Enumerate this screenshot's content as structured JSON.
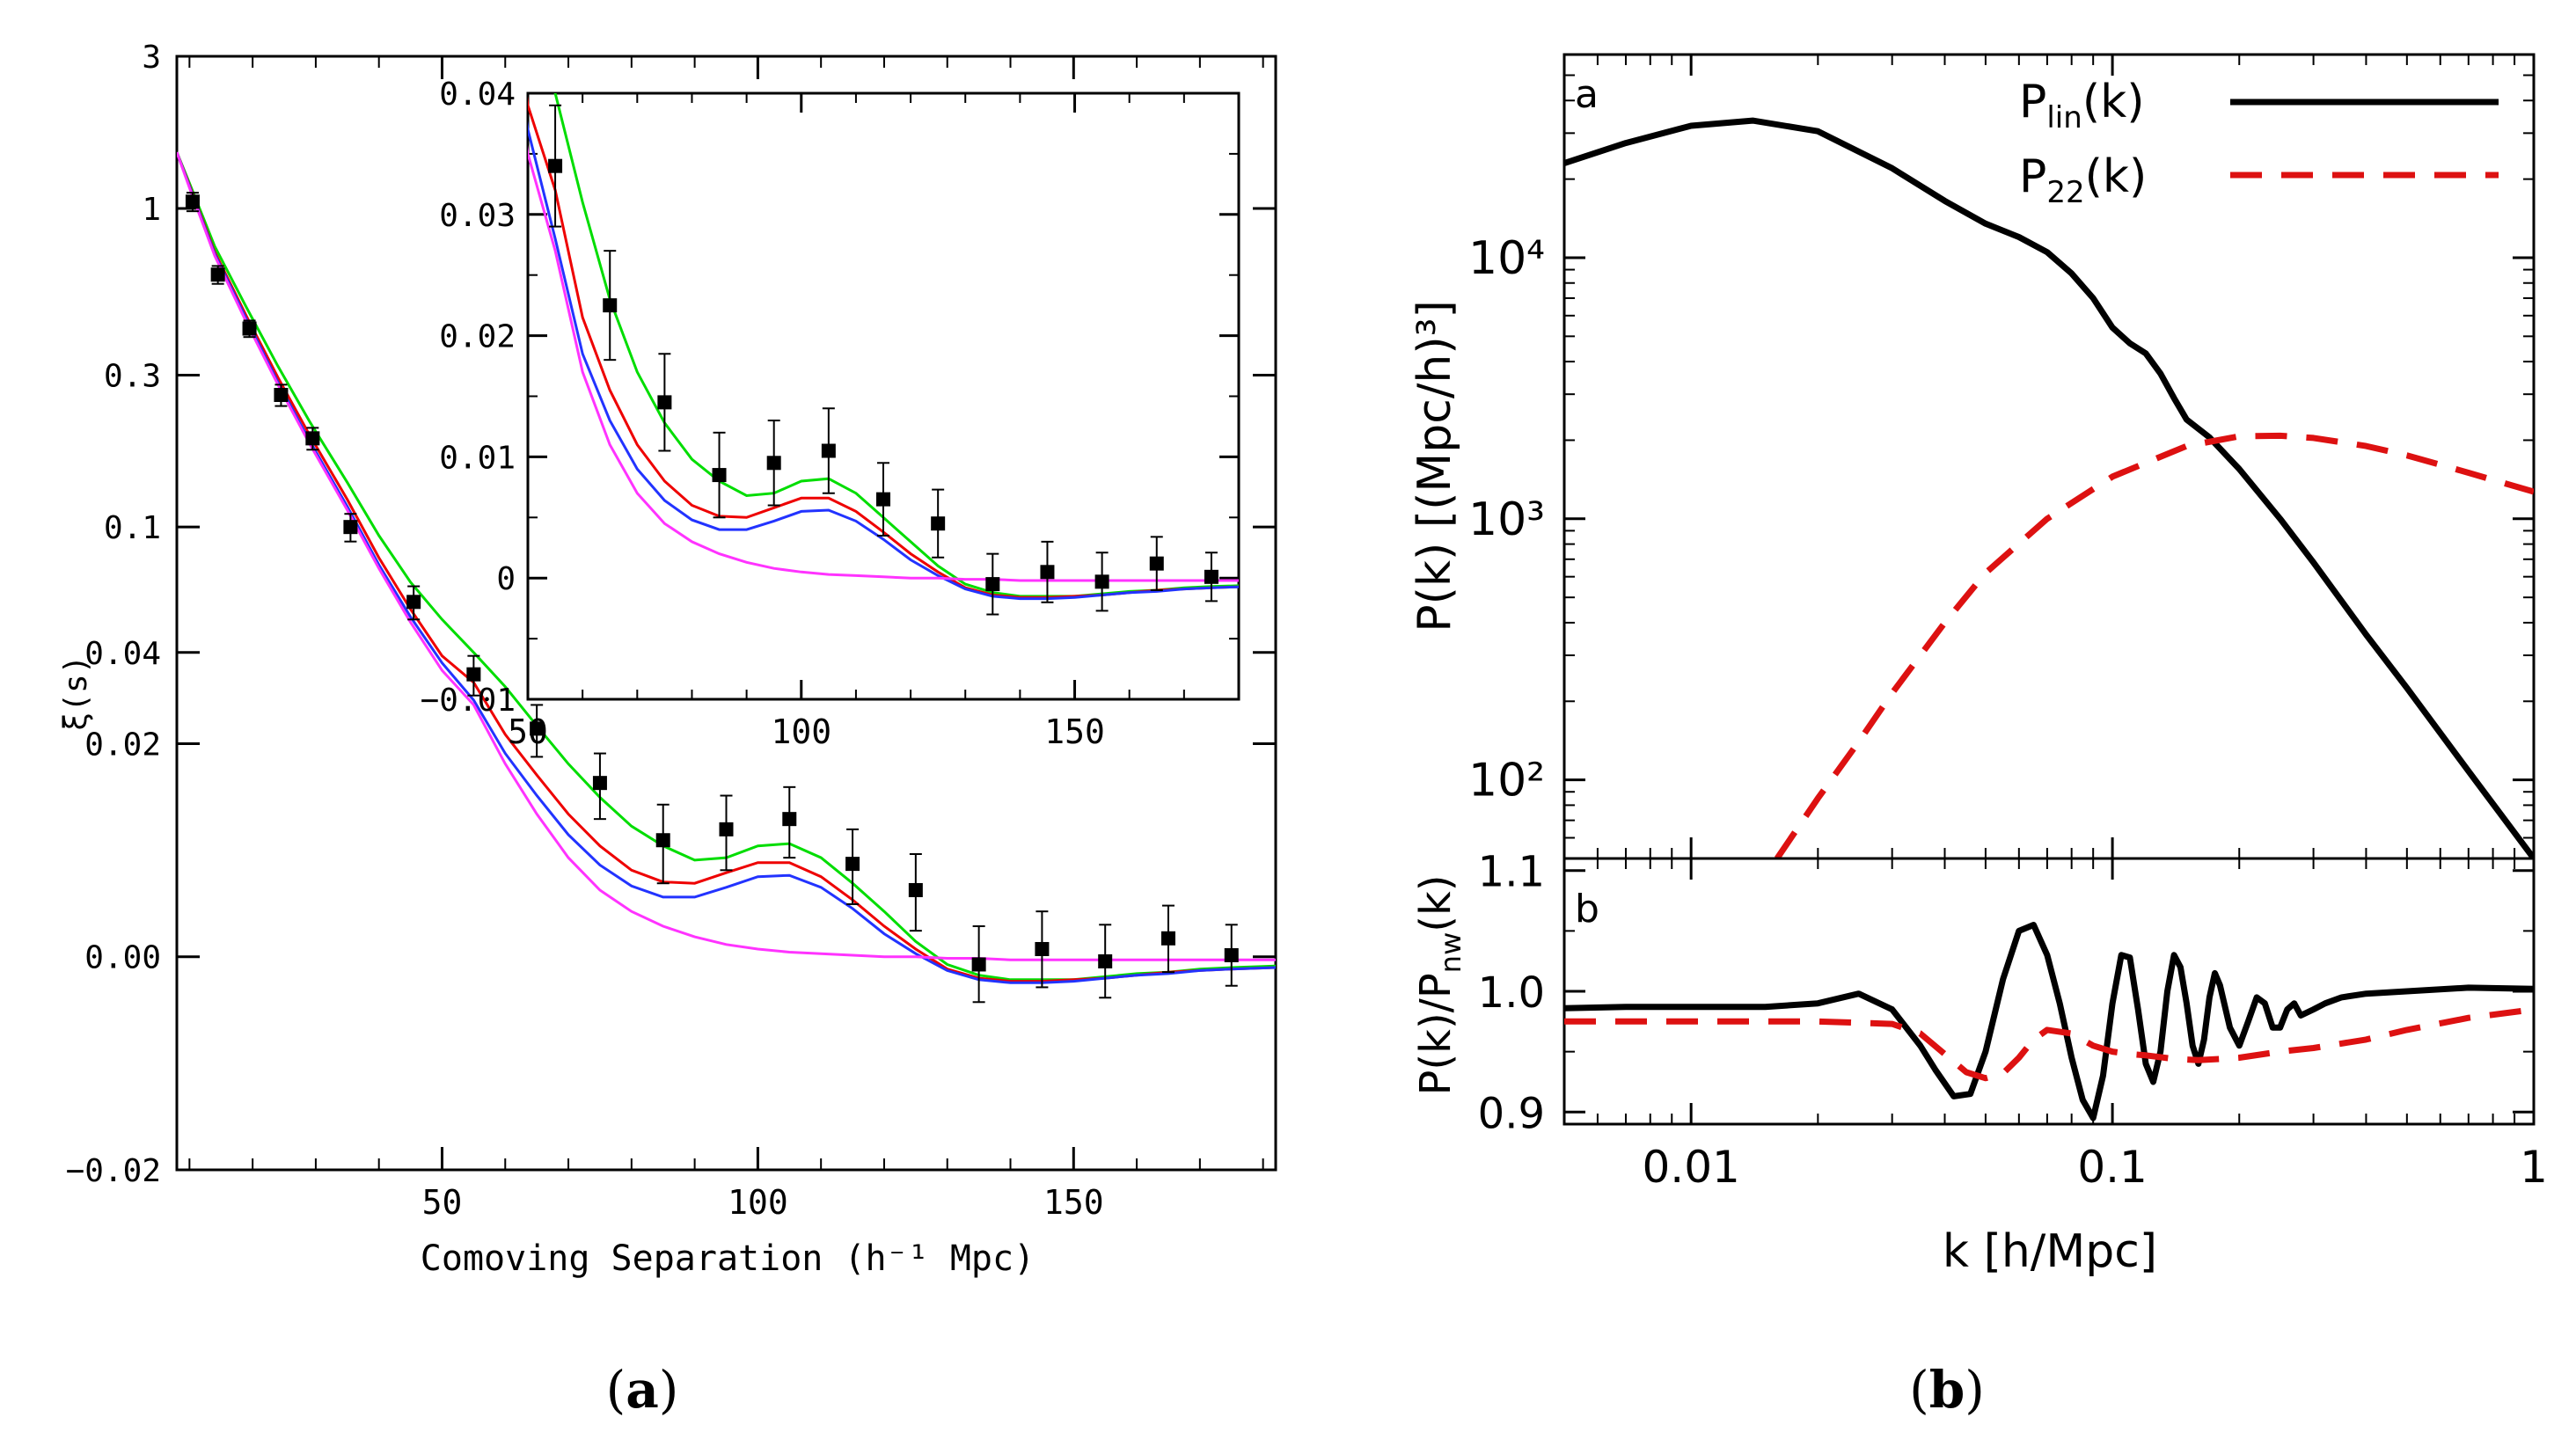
{
  "figure": {
    "panel_a_caption": "(a)",
    "panel_b_caption": "(b)",
    "caption_a_letter": "a",
    "caption_b_letter": "b"
  },
  "chart_data": [
    {
      "id": "a_main",
      "type": "line",
      "title": "",
      "xlabel": "Comoving Separation (h⁻¹ Mpc)",
      "ylabel": "ξ(s)",
      "xlim": [
        8,
        182
      ],
      "ylim": [
        -0.02,
        3
      ],
      "yscale": "asinh (linear near 0, log at large values)",
      "x_ticks": [
        50,
        100,
        150
      ],
      "y_ticks": [
        -0.02,
        0.0,
        0.02,
        0.04,
        0.1,
        0.3,
        1,
        3
      ],
      "y_tick_labels": [
        "−0.02",
        "0.00",
        "0.02",
        "0.04",
        "0.1",
        "0.3",
        "1",
        "3"
      ],
      "series": [
        {
          "name": "model green",
          "color": "#00dd00",
          "x": [
            8,
            10,
            14,
            19,
            24,
            29,
            35,
            40,
            45,
            50,
            55,
            60,
            65,
            70,
            75,
            80,
            85,
            90,
            95,
            100,
            105,
            110,
            115,
            120,
            125,
            130,
            135,
            140,
            145,
            150,
            155,
            160,
            165,
            170,
            175,
            182
          ],
          "values": [
            1.5,
            1.2,
            0.76,
            0.49,
            0.32,
            0.215,
            0.138,
            0.094,
            0.067,
            0.051,
            0.04,
            0.031,
            0.023,
            0.017,
            0.0128,
            0.0098,
            0.008,
            0.0068,
            0.007,
            0.008,
            0.0082,
            0.007,
            0.005,
            0.003,
            0.001,
            -0.0005,
            -0.0012,
            -0.0015,
            -0.0015,
            -0.0015,
            -0.0013,
            -0.0011,
            -0.001,
            -0.0008,
            -0.0007,
            -0.0006
          ]
        },
        {
          "name": "model red",
          "color": "#ee0000",
          "x": [
            8,
            10,
            14,
            19,
            24,
            29,
            35,
            40,
            45,
            50,
            55,
            60,
            65,
            70,
            75,
            80,
            85,
            90,
            95,
            100,
            105,
            110,
            115,
            120,
            125,
            130,
            135,
            140,
            145,
            150,
            155,
            160,
            165,
            170,
            175,
            182
          ],
          "values": [
            1.5,
            1.18,
            0.73,
            0.46,
            0.295,
            0.195,
            0.122,
            0.08,
            0.055,
            0.039,
            0.032,
            0.0215,
            0.0155,
            0.011,
            0.008,
            0.006,
            0.0051,
            0.005,
            0.0058,
            0.0066,
            0.0066,
            0.0055,
            0.0038,
            0.002,
            0.0005,
            -0.0008,
            -0.0014,
            -0.0016,
            -0.0016,
            -0.0015,
            -0.0014,
            -0.0012,
            -0.001,
            -0.0009,
            -0.0008,
            -0.0007
          ]
        },
        {
          "name": "model blue",
          "color": "#2233ff",
          "x": [
            8,
            10,
            14,
            19,
            24,
            29,
            35,
            40,
            45,
            50,
            55,
            60,
            65,
            70,
            75,
            80,
            85,
            90,
            95,
            100,
            105,
            110,
            115,
            120,
            125,
            130,
            135,
            140,
            145,
            150,
            155,
            160,
            165,
            170,
            175,
            182
          ],
          "values": [
            1.5,
            1.17,
            0.72,
            0.45,
            0.285,
            0.187,
            0.116,
            0.076,
            0.052,
            0.037,
            0.028,
            0.0185,
            0.013,
            0.009,
            0.0064,
            0.0048,
            0.004,
            0.004,
            0.0047,
            0.0055,
            0.0056,
            0.0047,
            0.0032,
            0.0015,
            0.0002,
            -0.0009,
            -0.0015,
            -0.0017,
            -0.0017,
            -0.0016,
            -0.0014,
            -0.0012,
            -0.0011,
            -0.0009,
            -0.0008,
            -0.0007
          ]
        },
        {
          "name": "model magenta",
          "color": "#ff33ff",
          "x": [
            8,
            10,
            14,
            19,
            24,
            29,
            35,
            40,
            45,
            50,
            55,
            60,
            65,
            70,
            75,
            80,
            85,
            90,
            95,
            100,
            105,
            110,
            115,
            120,
            125,
            130,
            135,
            140,
            145,
            150,
            155,
            160,
            165,
            170,
            175,
            182
          ],
          "values": [
            1.5,
            1.16,
            0.71,
            0.44,
            0.28,
            0.183,
            0.113,
            0.074,
            0.05,
            0.035,
            0.027,
            0.017,
            0.011,
            0.007,
            0.0045,
            0.003,
            0.002,
            0.0013,
            0.0008,
            0.0005,
            0.0003,
            0.0002,
            0.0001,
            0.0,
            0.0,
            -0.0001,
            -0.0001,
            -0.0002,
            -0.0002,
            -0.0002,
            -0.0002,
            -0.0002,
            -0.0002,
            -0.0002,
            -0.0002,
            -0.0002
          ]
        },
        {
          "name": "data",
          "type": "scatter",
          "color": "#000000",
          "x": [
            10.5,
            14.5,
            19.5,
            24.5,
            29.5,
            35.5,
            45.5,
            55,
            65,
            75,
            85,
            95,
            105,
            115,
            125,
            135,
            145,
            155,
            165,
            175
          ],
          "values": [
            1.05,
            0.62,
            0.42,
            0.26,
            0.19,
            0.1,
            0.058,
            0.034,
            0.0225,
            0.0145,
            0.0085,
            0.0095,
            0.0105,
            0.0065,
            0.0045,
            -0.0005,
            0.0005,
            -0.0003,
            0.0012,
            0.0001
          ],
          "errors": [
            0.07,
            0.04,
            0.025,
            0.02,
            0.015,
            0.01,
            0.007,
            0.005,
            0.0045,
            0.004,
            0.0035,
            0.0035,
            0.0035,
            0.003,
            0.0028,
            0.0025,
            0.0025,
            0.0024,
            0.0022,
            0.002
          ]
        }
      ]
    },
    {
      "id": "a_inset",
      "type": "line",
      "title": "",
      "xlabel": "",
      "ylabel": "",
      "xlim": [
        50,
        180
      ],
      "ylim": [
        -0.01,
        0.04
      ],
      "x_ticks": [
        50,
        100,
        150
      ],
      "y_ticks": [
        -0.01,
        0,
        0.01,
        0.02,
        0.03,
        0.04
      ],
      "y_tick_labels": [
        "−0.01",
        "0",
        "0.01",
        "0.02",
        "0.03",
        "0.04"
      ],
      "note": "zoom of the same curves and data as the main panel"
    },
    {
      "id": "b_top",
      "type": "line",
      "title": "",
      "xlabel": "",
      "ylabel": "P(k) [(Mpc/h)³]",
      "xscale": "log",
      "yscale": "log",
      "xlim": [
        0.005,
        1
      ],
      "ylim": [
        50,
        60000
      ],
      "y_ticks": [
        100,
        1000,
        10000
      ],
      "y_tick_labels": [
        "10²",
        "10³",
        "10⁴"
      ],
      "panel_label": "a",
      "legend": [
        "P_lin(k)",
        "P_22(k)"
      ],
      "legend_text": [
        {
          "main": "P",
          "sub": "lin",
          "tail": "(k)"
        },
        {
          "main": "P",
          "sub": "22",
          "tail": "(k)"
        }
      ],
      "series": [
        {
          "name": "P_lin(k)",
          "color": "#000000",
          "dash": "solid",
          "x": [
            0.005,
            0.007,
            0.01,
            0.014,
            0.02,
            0.03,
            0.04,
            0.05,
            0.06,
            0.07,
            0.08,
            0.09,
            0.1,
            0.11,
            0.12,
            0.13,
            0.14,
            0.15,
            0.17,
            0.2,
            0.25,
            0.3,
            0.4,
            0.5,
            0.7,
            1.0
          ],
          "values": [
            23000,
            27500,
            32000,
            33500,
            30500,
            22000,
            16500,
            13500,
            12000,
            10500,
            8700,
            7000,
            5400,
            4700,
            4300,
            3600,
            2900,
            2400,
            2050,
            1550,
            1000,
            680,
            360,
            225,
            108,
            50
          ]
        },
        {
          "name": "P_22(k)",
          "color": "#dd1111",
          "dash": "dashed",
          "x": [
            0.016,
            0.02,
            0.025,
            0.03,
            0.04,
            0.05,
            0.07,
            0.1,
            0.15,
            0.2,
            0.25,
            0.3,
            0.4,
            0.5,
            0.7,
            1.0
          ],
          "values": [
            50,
            85,
            140,
            215,
            400,
            620,
            1000,
            1450,
            1900,
            2070,
            2080,
            2040,
            1900,
            1750,
            1500,
            1270
          ]
        }
      ]
    },
    {
      "id": "b_bottom",
      "type": "line",
      "title": "",
      "xlabel": "k [h/Mpc]",
      "ylabel": "P(k)/P_nw(k)",
      "ylabel_parts": {
        "a": "P(k)/P",
        "sub": "nw",
        "b": "(k)"
      },
      "xscale": "log",
      "xlim": [
        0.005,
        1
      ],
      "ylim": [
        0.89,
        1.11
      ],
      "x_ticks": [
        0.01,
        0.1,
        1
      ],
      "x_tick_labels": [
        "0.01",
        "0.1",
        "1"
      ],
      "y_ticks": [
        0.9,
        1.0,
        1.1
      ],
      "y_tick_labels": [
        "0.9",
        "1.0",
        "1.1"
      ],
      "panel_label": "b",
      "series": [
        {
          "name": "P_lin/P_nw",
          "color": "#000000",
          "dash": "solid",
          "x": [
            0.005,
            0.007,
            0.01,
            0.015,
            0.02,
            0.025,
            0.03,
            0.035,
            0.038,
            0.042,
            0.046,
            0.05,
            0.055,
            0.06,
            0.065,
            0.07,
            0.075,
            0.08,
            0.085,
            0.09,
            0.095,
            0.1,
            0.105,
            0.11,
            0.115,
            0.12,
            0.125,
            0.13,
            0.135,
            0.14,
            0.145,
            0.15,
            0.155,
            0.16,
            0.165,
            0.17,
            0.175,
            0.18,
            0.19,
            0.2,
            0.21,
            0.22,
            0.23,
            0.24,
            0.25,
            0.26,
            0.27,
            0.28,
            0.3,
            0.32,
            0.35,
            0.4,
            0.5,
            0.7,
            1.0
          ],
          "values": [
            0.986,
            0.987,
            0.987,
            0.987,
            0.99,
            0.998,
            0.985,
            0.955,
            0.935,
            0.913,
            0.915,
            0.95,
            1.01,
            1.05,
            1.055,
            1.03,
            0.99,
            0.945,
            0.91,
            0.895,
            0.93,
            0.99,
            1.03,
            1.028,
            0.985,
            0.94,
            0.925,
            0.95,
            1.0,
            1.03,
            1.02,
            0.99,
            0.955,
            0.94,
            0.96,
            0.995,
            1.015,
            1.005,
            0.97,
            0.955,
            0.975,
            0.995,
            0.99,
            0.97,
            0.97,
            0.985,
            0.99,
            0.98,
            0.985,
            0.99,
            0.995,
            0.998,
            1.0,
            1.003,
            1.002
          ]
        },
        {
          "name": "P_22 ratio",
          "color": "#dd1111",
          "dash": "dashed",
          "x": [
            0.005,
            0.01,
            0.02,
            0.03,
            0.035,
            0.04,
            0.045,
            0.05,
            0.055,
            0.06,
            0.065,
            0.07,
            0.08,
            0.09,
            0.1,
            0.11,
            0.12,
            0.14,
            0.16,
            0.18,
            0.2,
            0.25,
            0.3,
            0.4,
            0.5,
            0.7,
            1.0
          ],
          "values": [
            0.975,
            0.975,
            0.975,
            0.973,
            0.965,
            0.948,
            0.933,
            0.928,
            0.932,
            0.945,
            0.96,
            0.968,
            0.965,
            0.955,
            0.95,
            0.948,
            0.947,
            0.944,
            0.943,
            0.944,
            0.945,
            0.95,
            0.953,
            0.96,
            0.968,
            0.978,
            0.985
          ]
        }
      ]
    }
  ]
}
